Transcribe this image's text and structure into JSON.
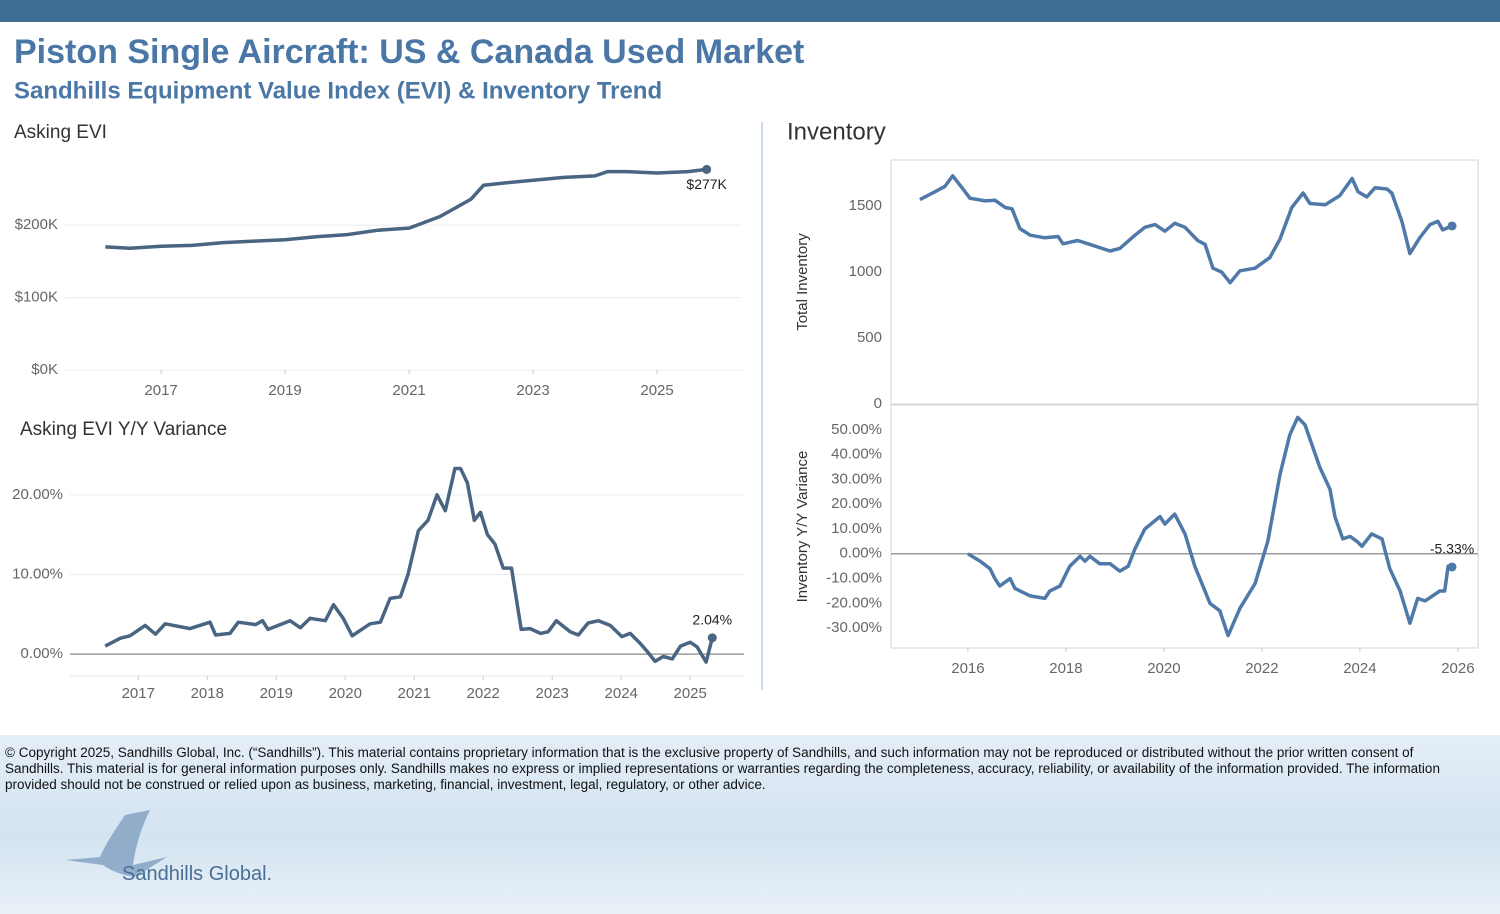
{
  "header": {
    "title": "Piston Single Aircraft:  US & Canada Used Market",
    "subtitle": "Sandhills Equipment Value Index (EVI) & Inventory Trend"
  },
  "footer": {
    "copyright": "© Copyright 2025, Sandhills Global, Inc. (“Sandhills”). This material contains proprietary information that is the exclusive property of Sandhills, and such information may not be reproduced or distributed without the prior written consent of Sandhills. This material is for general information purposes only. Sandhills makes no express or implied representations or warranties regarding the completeness, accuracy, reliability, or availability of the information provided. The information provided should not be construed or relied upon as business, marketing, financial, investment, legal, regulatory, or other advice.",
    "logo": "Sandhills Global."
  },
  "chart_data": [
    {
      "type": "line",
      "title": "Asking EVI",
      "color": "#4a6582",
      "x": [
        2016.1,
        2016.5,
        2017.0,
        2017.5,
        2018.0,
        2018.5,
        2019.0,
        2019.5,
        2020.0,
        2020.5,
        2021.0,
        2021.5,
        2022.0,
        2022.2,
        2022.5,
        2023.0,
        2023.5,
        2024.0,
        2024.2,
        2024.5,
        2025.0,
        2025.5,
        2025.8
      ],
      "values": [
        170000,
        168000,
        171000,
        172000,
        176000,
        178000,
        180000,
        184000,
        187000,
        193000,
        196000,
        212000,
        236000,
        255000,
        258000,
        262000,
        266000,
        268000,
        274000,
        274000,
        272000,
        274000,
        277000
      ],
      "value_labels": [
        null,
        null,
        null,
        null,
        null,
        null,
        null,
        null,
        null,
        null,
        null,
        null,
        null,
        null,
        null,
        null,
        null,
        null,
        null,
        null,
        null,
        null,
        "$277K"
      ],
      "xlim": [
        2015.45,
        2026.37
      ],
      "xticks": [
        2017,
        2019,
        2021,
        2023,
        2025
      ],
      "ylim": [
        0,
        290000
      ],
      "yticks": [
        {
          "value": 0,
          "label": "$0K"
        },
        {
          "value": 100000,
          "label": "$100K"
        },
        {
          "value": 200000,
          "label": "$200K"
        }
      ],
      "grid": true
    },
    {
      "type": "line",
      "title": "Asking EVI Y/Y Variance",
      "color": "#4a6582",
      "x": [
        2016.52,
        2016.74,
        2016.88,
        2017.1,
        2017.25,
        2017.39,
        2017.75,
        2018.04,
        2018.12,
        2018.33,
        2018.45,
        2018.7,
        2018.8,
        2018.88,
        2019.2,
        2019.35,
        2019.49,
        2019.71,
        2019.83,
        2019.97,
        2020.1,
        2020.36,
        2020.51,
        2020.65,
        2020.8,
        2020.91,
        2021.06,
        2021.2,
        2021.33,
        2021.45,
        2021.59,
        2021.67,
        2021.77,
        2021.87,
        2021.96,
        2022.06,
        2022.17,
        2022.29,
        2022.41,
        2022.55,
        2022.68,
        2022.83,
        2022.94,
        2023.06,
        2023.26,
        2023.38,
        2023.52,
        2023.67,
        2023.84,
        2024.01,
        2024.13,
        2024.28,
        2024.39,
        2024.49,
        2024.61,
        2024.74,
        2024.86,
        2025.0,
        2025.1,
        2025.23,
        2025.32
      ],
      "values": [
        1.0,
        2.0,
        2.3,
        3.6,
        2.5,
        3.8,
        3.2,
        4.0,
        2.4,
        2.6,
        4.0,
        3.7,
        4.2,
        3.1,
        4.2,
        3.3,
        4.5,
        4.2,
        6.2,
        4.5,
        2.3,
        3.8,
        4.0,
        7.0,
        7.2,
        10.0,
        15.5,
        16.8,
        20.0,
        18.0,
        23.3,
        23.3,
        21.5,
        16.8,
        17.8,
        15.0,
        13.8,
        10.8,
        10.8,
        3.1,
        3.2,
        2.6,
        2.8,
        4.2,
        2.8,
        2.4,
        3.9,
        4.2,
        3.6,
        2.2,
        2.6,
        1.3,
        0.2,
        -0.9,
        -0.3,
        -0.6,
        1.0,
        1.5,
        0.9,
        -1.0,
        2.04
      ],
      "value_labels": [
        null,
        null,
        null,
        null,
        null,
        null,
        null,
        null,
        null,
        null,
        null,
        null,
        null,
        null,
        null,
        null,
        null,
        null,
        null,
        null,
        null,
        null,
        null,
        null,
        null,
        null,
        null,
        null,
        null,
        null,
        null,
        null,
        null,
        null,
        null,
        null,
        null,
        null,
        null,
        null,
        null,
        null,
        null,
        null,
        null,
        null,
        null,
        null,
        null,
        null,
        null,
        null,
        null,
        null,
        null,
        null,
        null,
        null,
        null,
        null,
        "2.04%"
      ],
      "xlim": [
        2016.01,
        2025.78
      ],
      "xticks": [
        2017,
        2018,
        2019,
        2020,
        2021,
        2022,
        2023,
        2024,
        2025
      ],
      "ylim": [
        -2.75,
        25
      ],
      "yticks": [
        {
          "value": 0,
          "label": "0.00%"
        },
        {
          "value": 10,
          "label": "10.00%"
        },
        {
          "value": 20,
          "label": "20.00%"
        }
      ],
      "grid": true
    },
    {
      "type": "line",
      "title": "Inventory",
      "y_label": "Total Inventory",
      "color": "#4f79a8",
      "x": [
        2015.02,
        2015.33,
        2015.53,
        2015.69,
        2015.88,
        2016.04,
        2016.35,
        2016.55,
        2016.76,
        2016.9,
        2017.06,
        2017.27,
        2017.57,
        2017.84,
        2017.94,
        2018.24,
        2018.49,
        2018.9,
        2019.1,
        2019.41,
        2019.61,
        2019.82,
        2020.02,
        2020.22,
        2020.43,
        2020.69,
        2020.84,
        2021.0,
        2021.18,
        2021.35,
        2021.55,
        2021.86,
        2022.16,
        2022.37,
        2022.61,
        2022.84,
        2022.98,
        2023.29,
        2023.59,
        2023.84,
        2023.96,
        2024.14,
        2024.31,
        2024.55,
        2024.65,
        2024.86,
        2025.02,
        2025.22,
        2025.43,
        2025.59,
        2025.69,
        2025.88
      ],
      "values": [
        1550,
        1610,
        1650,
        1730,
        1640,
        1560,
        1540,
        1545,
        1490,
        1480,
        1330,
        1280,
        1260,
        1270,
        1215,
        1240,
        1210,
        1160,
        1180,
        1280,
        1340,
        1360,
        1310,
        1370,
        1340,
        1240,
        1210,
        1030,
        1000,
        920,
        1010,
        1030,
        1110,
        1250,
        1490,
        1600,
        1520,
        1510,
        1580,
        1710,
        1610,
        1570,
        1640,
        1630,
        1600,
        1380,
        1140,
        1260,
        1360,
        1385,
        1320,
        1350
      ],
      "xlim": [
        2014.43,
        2026.41
      ],
      "ylim": [
        0,
        1850
      ],
      "yticks": [
        0,
        500,
        1000,
        1500
      ]
    },
    {
      "type": "line",
      "y_label": "Inventory  Y/Y Variance",
      "color": "#4f79a8",
      "x": [
        2016.0,
        2016.25,
        2016.45,
        2016.55,
        2016.65,
        2016.86,
        2016.96,
        2017.27,
        2017.57,
        2017.67,
        2017.88,
        2018.08,
        2018.29,
        2018.39,
        2018.49,
        2018.69,
        2018.9,
        2019.1,
        2019.27,
        2019.41,
        2019.61,
        2019.92,
        2020.02,
        2020.22,
        2020.43,
        2020.63,
        2020.94,
        2021.14,
        2021.31,
        2021.55,
        2021.86,
        2022.12,
        2022.37,
        2022.57,
        2022.73,
        2022.88,
        2023.18,
        2023.39,
        2023.49,
        2023.65,
        2023.8,
        2023.94,
        2024.04,
        2024.24,
        2024.45,
        2024.61,
        2024.82,
        2025.02,
        2025.18,
        2025.33,
        2025.63,
        2025.73,
        2025.8,
        2025.88
      ],
      "values": [
        0,
        -3,
        -6,
        -10,
        -13,
        -10,
        -14,
        -17,
        -18,
        -15,
        -13,
        -5,
        -1,
        -3,
        -1,
        -4,
        -4,
        -7,
        -5,
        2,
        10,
        15,
        12,
        16,
        8,
        -5,
        -20,
        -23,
        -33,
        -22,
        -12,
        5,
        32,
        48,
        55,
        52,
        35,
        26,
        15,
        6,
        7,
        5,
        3,
        8,
        6,
        -6,
        -15,
        -28,
        -18,
        -19,
        -15,
        -15,
        -5,
        -5.33
      ],
      "value_labels": [
        null,
        null,
        null,
        null,
        null,
        null,
        null,
        null,
        null,
        null,
        null,
        null,
        null,
        null,
        null,
        null,
        null,
        null,
        null,
        null,
        null,
        null,
        null,
        null,
        null,
        null,
        null,
        null,
        null,
        null,
        null,
        null,
        null,
        null,
        null,
        null,
        null,
        null,
        null,
        null,
        null,
        null,
        null,
        null,
        null,
        null,
        null,
        null,
        null,
        null,
        null,
        null,
        null,
        "-5.33%"
      ],
      "xlim": [
        2014.43,
        2026.41
      ],
      "xticks": [
        2016,
        2018,
        2020,
        2022,
        2024,
        2026
      ],
      "ylim": [
        -38,
        60
      ],
      "yticks": [
        {
          "value": -30,
          "label": "-30.00%"
        },
        {
          "value": -20,
          "label": "-20.00%"
        },
        {
          "value": -10,
          "label": "-10.00%"
        },
        {
          "value": 0,
          "label": "0.00%"
        },
        {
          "value": 10,
          "label": "10.00%"
        },
        {
          "value": 20,
          "label": "20.00%"
        },
        {
          "value": 30,
          "label": "30.00%"
        },
        {
          "value": 40,
          "label": "40.00%"
        },
        {
          "value": 50,
          "label": "50.00%"
        }
      ]
    }
  ]
}
